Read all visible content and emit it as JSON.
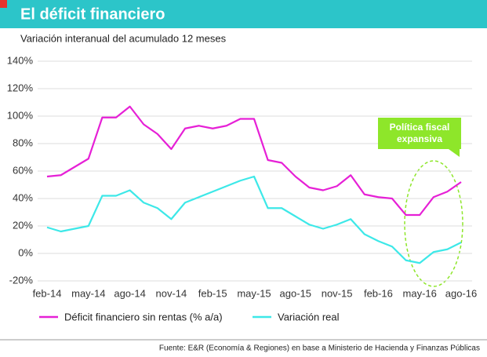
{
  "chart_data": {
    "type": "line",
    "title": "El déficit financiero",
    "subtitle": "Variación interanual del acumulado 12 meses",
    "source": "Fuente: E&R (Economía & Regiones) en base a Ministerio de Hacienda y Finanzas Públicas",
    "annotation": "Política fiscal expansiva",
    "categories": [
      "feb-14",
      null,
      null,
      "may-14",
      null,
      null,
      "ago-14",
      null,
      null,
      "nov-14",
      null,
      null,
      "feb-15",
      null,
      null,
      "may-15",
      null,
      null,
      "ago-15",
      null,
      null,
      "nov-15",
      null,
      null,
      "feb-16",
      null,
      null,
      "may-16",
      null,
      null,
      "ago-16"
    ],
    "series": [
      {
        "name": "Déficit financiero sin rentas (% a/a)",
        "color": "#e620d6",
        "values": [
          56,
          57,
          63,
          69,
          99,
          99,
          107,
          94,
          87,
          76,
          91,
          93,
          91,
          93,
          98,
          98,
          68,
          66,
          56,
          48,
          46,
          49,
          57,
          43,
          41,
          40,
          28,
          28,
          41,
          45,
          52
        ]
      },
      {
        "name": "Variación real",
        "color": "#3de8e8",
        "values": [
          19,
          16,
          18,
          20,
          42,
          42,
          46,
          37,
          33,
          25,
          37,
          41,
          45,
          49,
          53,
          56,
          33,
          33,
          27,
          21,
          18,
          21,
          25,
          14,
          9,
          5,
          -5,
          -7,
          1,
          3,
          8
        ]
      }
    ],
    "ylim": [
      -20,
      140
    ],
    "yticks": [
      {
        "value": -20,
        "label": "-20%"
      },
      {
        "value": 0,
        "label": "0%"
      },
      {
        "value": 20,
        "label": "20%"
      },
      {
        "value": 40,
        "label": "40%"
      },
      {
        "value": 60,
        "label": "60%"
      },
      {
        "value": 80,
        "label": "80%"
      },
      {
        "value": 100,
        "label": "100%"
      },
      {
        "value": 120,
        "label": "120%"
      },
      {
        "value": 140,
        "label": "140%"
      }
    ],
    "grid": true
  }
}
